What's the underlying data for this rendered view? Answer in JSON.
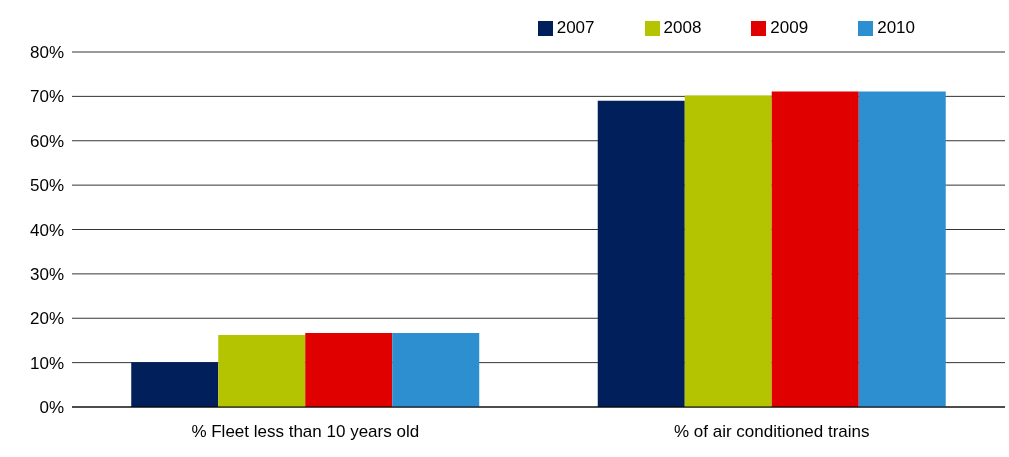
{
  "chart_data": {
    "type": "bar",
    "categories": [
      "% Fleet less than 10 years old",
      "% of air conditioned trains"
    ],
    "series": [
      {
        "name": "2007",
        "color": "#001f5b",
        "values": [
          10.1,
          69.0
        ]
      },
      {
        "name": "2008",
        "color": "#b5c400",
        "values": [
          16.2,
          70.2
        ]
      },
      {
        "name": "2009",
        "color": "#e00000",
        "values": [
          16.7,
          71.1
        ]
      },
      {
        "name": "2010",
        "color": "#2e8fd0",
        "values": [
          16.7,
          71.1
        ]
      }
    ],
    "ylim": [
      0,
      80
    ],
    "yticks": [
      {
        "value": 0,
        "label": "0%"
      },
      {
        "value": 10,
        "label": "10%"
      },
      {
        "value": 20,
        "label": "20%"
      },
      {
        "value": 30,
        "label": "30%"
      },
      {
        "value": 40,
        "label": "40%"
      },
      {
        "value": 50,
        "label": "50%"
      },
      {
        "value": 60,
        "label": "60%"
      },
      {
        "value": 70,
        "label": "70%"
      },
      {
        "value": 80,
        "label": "80%"
      }
    ],
    "grid": "y",
    "legend": "top right"
  }
}
